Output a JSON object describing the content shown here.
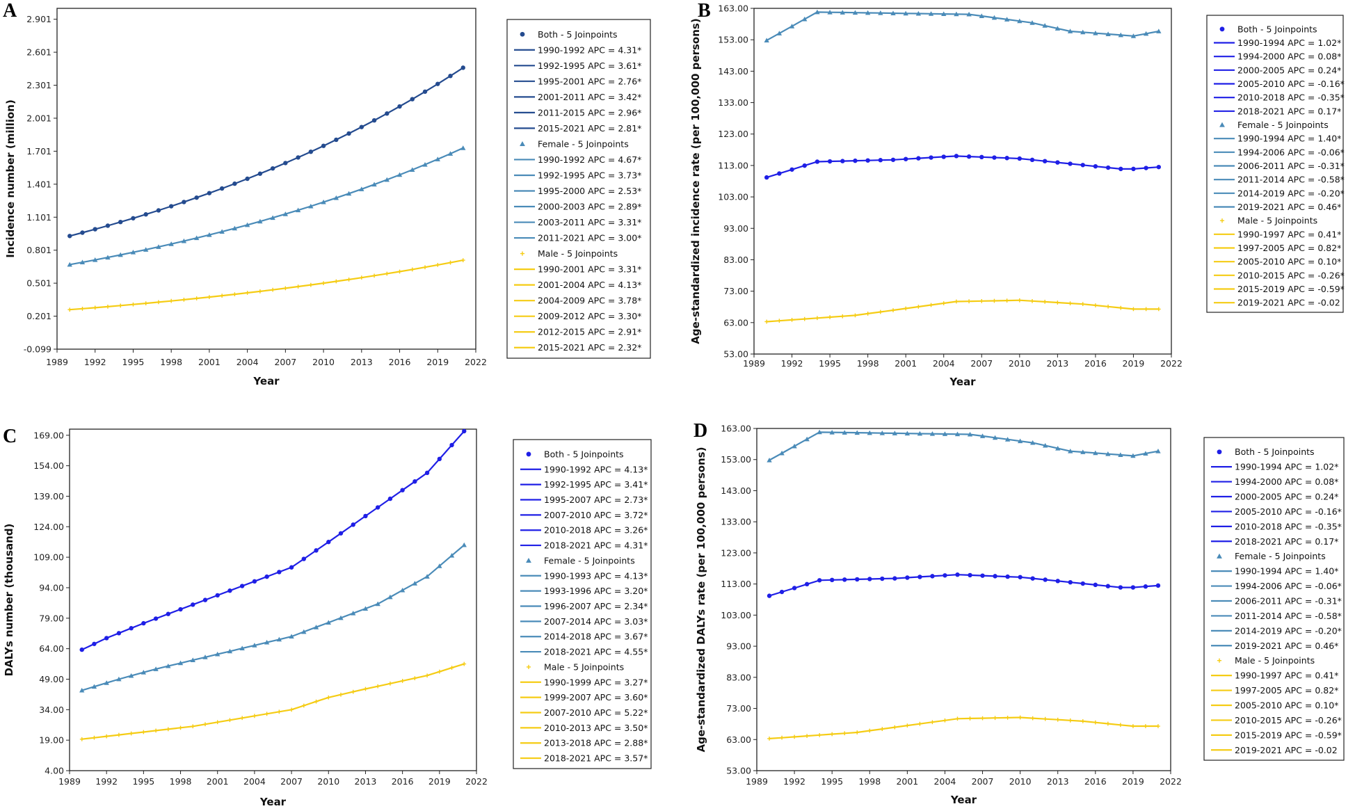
{
  "colors": {
    "both_a": "#244b8f",
    "both": "#1f1fe6",
    "female": "#4a8bb8",
    "male": "#f5cc14"
  },
  "chart_data": [
    {
      "panel": "A",
      "type": "line",
      "xlabel": "Year",
      "ylabel": "Incidence number (million)",
      "x_ticks": [
        1989,
        1992,
        1995,
        1998,
        2001,
        2004,
        2007,
        2010,
        2013,
        2016,
        2019,
        2022
      ],
      "y_ticks": [
        "-0.099",
        "0.201",
        "0.501",
        "0.801",
        "1.101",
        "1.401",
        "1.701",
        "2.001",
        "2.301",
        "2.601",
        "2.901"
      ],
      "xlim": [
        1989,
        2022
      ],
      "ylim": [
        -0.099,
        3.0
      ],
      "series": [
        {
          "name": "Both",
          "color_key": "both_a",
          "marker": "circle",
          "x": [
            1990,
            2021
          ],
          "start": 0.93,
          "end": 2.46,
          "shape": "growth",
          "k": 0.03
        },
        {
          "name": "Female",
          "color_key": "female",
          "marker": "triangle",
          "x": [
            1990,
            2021
          ],
          "start": 0.67,
          "end": 1.73,
          "shape": "growth",
          "k": 0.03
        },
        {
          "name": "Male",
          "color_key": "male",
          "marker": "plus",
          "x": [
            1990,
            2021
          ],
          "start": 0.26,
          "end": 0.71,
          "shape": "growth",
          "k": 0.03
        }
      ],
      "legend": [
        {
          "header": "Both - 5 Joinpoints",
          "color_key": "both_a",
          "marker": "circle",
          "items": [
            "1990-1992 APC = 4.31*",
            "1992-1995 APC = 3.61*",
            "1995-2001 APC = 2.76*",
            "2001-2011 APC = 3.42*",
            "2011-2015 APC = 2.96*",
            "2015-2021 APC = 2.81*"
          ]
        },
        {
          "header": "Female - 5 Joinpoints",
          "color_key": "female",
          "marker": "triangle",
          "items": [
            "1990-1992 APC = 4.67*",
            "1992-1995 APC = 3.73*",
            "1995-2000 APC = 2.53*",
            "2000-2003 APC = 2.89*",
            "2003-2011 APC = 3.31*",
            "2011-2021 APC = 3.00*"
          ]
        },
        {
          "header": "Male - 5 Joinpoints",
          "color_key": "male",
          "marker": "plus",
          "items": [
            "1990-2001 APC = 3.31*",
            "2001-2004 APC = 4.13*",
            "2004-2009 APC = 3.78*",
            "2009-2012 APC = 3.30*",
            "2012-2015 APC = 2.91*",
            "2015-2021 APC = 2.32*"
          ]
        }
      ]
    },
    {
      "panel": "B",
      "type": "line",
      "xlabel": "Year",
      "ylabel": "Age-standardized incidence rate (per 100,000 persons)",
      "x_ticks": [
        1989,
        1992,
        1995,
        1998,
        2001,
        2004,
        2007,
        2010,
        2013,
        2016,
        2019,
        2022
      ],
      "y_ticks": [
        "53.00",
        "63.00",
        "73.00",
        "83.00",
        "93.00",
        "103.00",
        "113.00",
        "123.00",
        "133.00",
        "143.00",
        "153.00",
        "163.00"
      ],
      "xlim": [
        1989,
        2022
      ],
      "ylim": [
        53,
        163
      ],
      "series": [
        {
          "name": "Both",
          "color_key": "both",
          "marker": "circle",
          "x": [
            1990,
            1994,
            2000,
            2005,
            2010,
            2018,
            2019,
            2021
          ],
          "y": [
            109.2,
            114.2,
            114.8,
            116.0,
            115.2,
            111.9,
            111.9,
            112.5
          ]
        },
        {
          "name": "Female",
          "color_key": "female",
          "marker": "triangle",
          "x": [
            1990,
            1994,
            2006,
            2011,
            2014,
            2019,
            2021
          ],
          "y": [
            152.8,
            161.8,
            161.1,
            158.4,
            155.7,
            154.2,
            155.7
          ]
        },
        {
          "name": "Male",
          "color_key": "male",
          "marker": "plus",
          "x": [
            1990,
            1997,
            2005,
            2010,
            2015,
            2019,
            2021
          ],
          "y": [
            63.3,
            65.3,
            69.7,
            70.1,
            68.9,
            67.3,
            67.3
          ]
        }
      ],
      "legend": [
        {
          "header": "Both - 5 Joinpoints",
          "color_key": "both",
          "marker": "circle",
          "items": [
            "1990-1994 APC = 1.02*",
            "1994-2000 APC = 0.08*",
            "2000-2005 APC = 0.24*",
            "2005-2010 APC = -0.16*",
            "2010-2018 APC = -0.35*",
            "2018-2021 APC = 0.17*"
          ]
        },
        {
          "header": "Female - 5 Joinpoints",
          "color_key": "female",
          "marker": "triangle",
          "items": [
            "1990-1994 APC = 1.40*",
            "1994-2006 APC = -0.06*",
            "2006-2011 APC = -0.31*",
            "2011-2014 APC = -0.58*",
            "2014-2019 APC = -0.20*",
            "2019-2021 APC = 0.46*"
          ]
        },
        {
          "header": "Male - 5 Joinpoints",
          "color_key": "male",
          "marker": "plus",
          "items": [
            "1990-1997 APC = 0.41*",
            "1997-2005 APC = 0.82*",
            "2005-2010 APC = 0.10*",
            "2010-2015 APC = -0.26*",
            "2015-2019 APC = -0.59*",
            "2019-2021 APC = -0.02"
          ]
        }
      ]
    },
    {
      "panel": "C",
      "type": "line",
      "xlabel": "Year",
      "ylabel": "DALYs number (thousand)",
      "x_ticks": [
        1989,
        1992,
        1995,
        1998,
        2001,
        2004,
        2007,
        2010,
        2013,
        2016,
        2019,
        2022
      ],
      "y_ticks": [
        "4.00",
        "19.00",
        "34.00",
        "49.00",
        "64.00",
        "79.00",
        "94.00",
        "109.00",
        "124.00",
        "139.00",
        "154.00",
        "169.00"
      ],
      "xlim": [
        1989,
        2022
      ],
      "ylim": [
        4,
        172
      ],
      "series": [
        {
          "name": "Both",
          "color_key": "both",
          "marker": "circle",
          "x": [
            1990,
            1992,
            1995,
            2007,
            2010,
            2018,
            2021
          ],
          "y": [
            63.5,
            69.2,
            76.5,
            104.0,
            116.5,
            150.5,
            171.0
          ]
        },
        {
          "name": "Female",
          "color_key": "female",
          "marker": "triangle",
          "x": [
            1990,
            1993,
            1996,
            2007,
            2014,
            2018,
            2021
          ],
          "y": [
            43.5,
            49.0,
            54.0,
            70.0,
            86.0,
            99.5,
            115.0
          ]
        },
        {
          "name": "Male",
          "color_key": "male",
          "marker": "plus",
          "x": [
            1990,
            1999,
            2007,
            2010,
            2013,
            2018,
            2021
          ],
          "y": [
            19.5,
            25.8,
            34.0,
            40.0,
            44.2,
            50.8,
            56.5
          ]
        }
      ],
      "legend": [
        {
          "header": "Both - 5 Joinpoints",
          "color_key": "both",
          "marker": "circle",
          "items": [
            "1990-1992 APC = 4.13*",
            "1992-1995 APC = 3.41*",
            "1995-2007 APC = 2.73*",
            "2007-2010 APC = 3.72*",
            "2010-2018 APC = 3.26*",
            "2018-2021 APC = 4.31*"
          ]
        },
        {
          "header": "Female - 5 Joinpoints",
          "color_key": "female",
          "marker": "triangle",
          "items": [
            "1990-1993 APC = 4.13*",
            "1993-1996 APC = 3.20*",
            "1996-2007 APC = 2.34*",
            "2007-2014 APC = 3.03*",
            "2014-2018 APC = 3.67*",
            "2018-2021 APC = 4.55*"
          ]
        },
        {
          "header": "Male - 5 Joinpoints",
          "color_key": "male",
          "marker": "plus",
          "items": [
            "1990-1999 APC = 3.27*",
            "1999-2007 APC = 3.60*",
            "2007-2010 APC = 5.22*",
            "2010-2013 APC = 3.50*",
            "2013-2018 APC = 2.88*",
            "2018-2021 APC = 3.57*"
          ]
        }
      ]
    },
    {
      "panel": "D",
      "type": "line",
      "xlabel": "Year",
      "ylabel": "Age-standardized DALYs rate (per 100,000 persons)",
      "x_ticks": [
        1989,
        1992,
        1995,
        1998,
        2001,
        2004,
        2007,
        2010,
        2013,
        2016,
        2019,
        2022
      ],
      "y_ticks": [
        "53.00",
        "63.00",
        "73.00",
        "83.00",
        "93.00",
        "103.00",
        "113.00",
        "123.00",
        "133.00",
        "143.00",
        "153.00",
        "163.00"
      ],
      "xlim": [
        1989,
        2022
      ],
      "ylim": [
        53,
        163
      ],
      "series": [
        {
          "name": "Both",
          "color_key": "both",
          "marker": "circle",
          "x": [
            1990,
            1994,
            2000,
            2005,
            2010,
            2018,
            2019,
            2021
          ],
          "y": [
            109.2,
            114.2,
            114.8,
            116.0,
            115.2,
            111.9,
            111.9,
            112.5
          ]
        },
        {
          "name": "Female",
          "color_key": "female",
          "marker": "triangle",
          "x": [
            1990,
            1994,
            2006,
            2011,
            2014,
            2019,
            2021
          ],
          "y": [
            152.8,
            161.8,
            161.1,
            158.4,
            155.7,
            154.2,
            155.7
          ]
        },
        {
          "name": "Male",
          "color_key": "male",
          "marker": "plus",
          "x": [
            1990,
            1997,
            2005,
            2010,
            2015,
            2019,
            2021
          ],
          "y": [
            63.3,
            65.3,
            69.7,
            70.1,
            68.9,
            67.3,
            67.3
          ]
        }
      ],
      "legend": [
        {
          "header": "Both - 5 Joinpoints",
          "color_key": "both",
          "marker": "circle",
          "items": [
            "1990-1994 APC = 1.02*",
            "1994-2000 APC = 0.08*",
            "2000-2005 APC = 0.24*",
            "2005-2010 APC = -0.16*",
            "2010-2018 APC = -0.35*",
            "2018-2021 APC = 0.17*"
          ]
        },
        {
          "header": "Female - 5 Joinpoints",
          "color_key": "female",
          "marker": "triangle",
          "items": [
            "1990-1994 APC = 1.40*",
            "1994-2006 APC = -0.06*",
            "2006-2011 APC = -0.31*",
            "2011-2014 APC = -0.58*",
            "2014-2019 APC = -0.20*",
            "2019-2021 APC = 0.46*"
          ]
        },
        {
          "header": "Male - 5 Joinpoints",
          "color_key": "male",
          "marker": "plus",
          "items": [
            "1990-1997 APC = 0.41*",
            "1997-2005 APC = 0.82*",
            "2005-2010 APC = 0.10*",
            "2010-2015 APC = -0.26*",
            "2015-2019 APC = -0.59*",
            "2019-2021 APC = -0.02"
          ]
        }
      ]
    }
  ]
}
